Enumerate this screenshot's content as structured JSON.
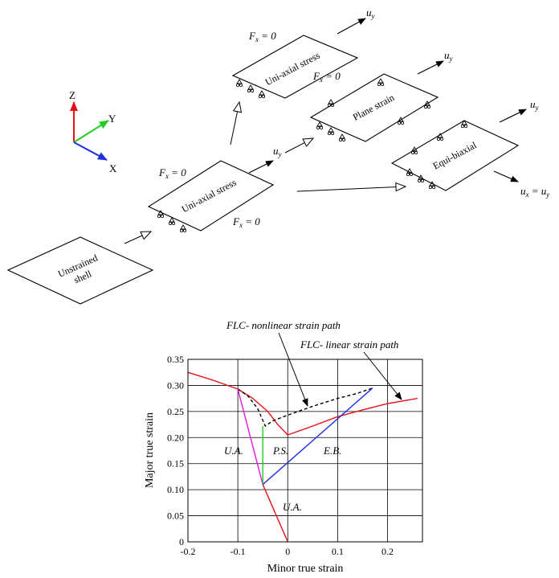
{
  "axes_triad": {
    "z": "Z",
    "y": "Y",
    "x": "X"
  },
  "plates": {
    "unstrained": {
      "line1": "Unstrained",
      "line2": "shell"
    },
    "uniaxial_1": {
      "label": "Uni-axial stress",
      "fx_top": "F",
      "fx_bottom": "F",
      "uy_base": "u"
    },
    "uniaxial_2": {
      "label": "Uni-axial stress",
      "fx_top": "F",
      "fx_bottom": "F",
      "uy_base": "u"
    },
    "plane_strain": {
      "label": "Plane strain",
      "uy_base": "u"
    },
    "equibiaxial": {
      "label": "Equi-biaxial",
      "uy_base": "u",
      "ux_eq": "u"
    }
  },
  "symbols": {
    "F": "F",
    "x_sub": "x",
    "eq_zero": " = 0",
    "u": "u",
    "y_sub": "y",
    "eq": " = "
  },
  "chart_data": {
    "type": "line",
    "xlabel": "Minor true strain",
    "ylabel": "Major true strain",
    "xlim": [
      -0.2,
      0.27
    ],
    "ylim": [
      0,
      0.35
    ],
    "xticks": [
      "-0.2",
      "-0.1",
      "0",
      "0.1",
      "0.2"
    ],
    "yticks": [
      "0",
      "0.05",
      "0.10",
      "0.15",
      "0.20",
      "0.25",
      "0.30",
      "0.35"
    ],
    "grid": true,
    "series": [
      {
        "name": "FLC- linear strain path",
        "color": "#e8111a",
        "dash": "solid",
        "x": [
          -0.2,
          -0.15,
          -0.1,
          -0.07,
          -0.04,
          -0.02,
          0,
          0.05,
          0.1,
          0.15,
          0.2,
          0.26
        ],
        "y": [
          0.325,
          0.31,
          0.293,
          0.275,
          0.25,
          0.225,
          0.205,
          0.222,
          0.24,
          0.253,
          0.265,
          0.275
        ]
      },
      {
        "name": "FLC- nonlinear strain path",
        "color": "#000000",
        "dash": "dashed",
        "x": [
          -0.1,
          -0.08,
          -0.06,
          -0.045,
          -0.03,
          0,
          0.05,
          0.1,
          0.14,
          0.17
        ],
        "y": [
          0.293,
          0.28,
          0.255,
          0.222,
          0.232,
          0.243,
          0.26,
          0.275,
          0.285,
          0.295
        ]
      },
      {
        "name": "",
        "color": "#e8111a",
        "dash": "solid",
        "x": [
          -0.05,
          0
        ],
        "y": [
          0.11,
          0
        ]
      },
      {
        "name": "",
        "color": "#e11bd9",
        "dash": "solid",
        "x": [
          -0.1,
          -0.05
        ],
        "y": [
          0.293,
          0.11
        ]
      },
      {
        "name": "",
        "color": "#22cc22",
        "dash": "solid",
        "x": [
          -0.05,
          -0.05
        ],
        "y": [
          0.11,
          0.222
        ]
      },
      {
        "name": "",
        "color": "#1c2fe0",
        "dash": "solid",
        "x": [
          -0.05,
          0.17
        ],
        "y": [
          0.11,
          0.295
        ]
      }
    ],
    "annotations": [
      {
        "text": "FLC- nonlinear strain path"
      },
      {
        "text": "FLC- linear strain path"
      },
      {
        "text": "U.A."
      },
      {
        "text": "P.S."
      },
      {
        "text": "E.B."
      },
      {
        "text": "U.A."
      }
    ]
  }
}
